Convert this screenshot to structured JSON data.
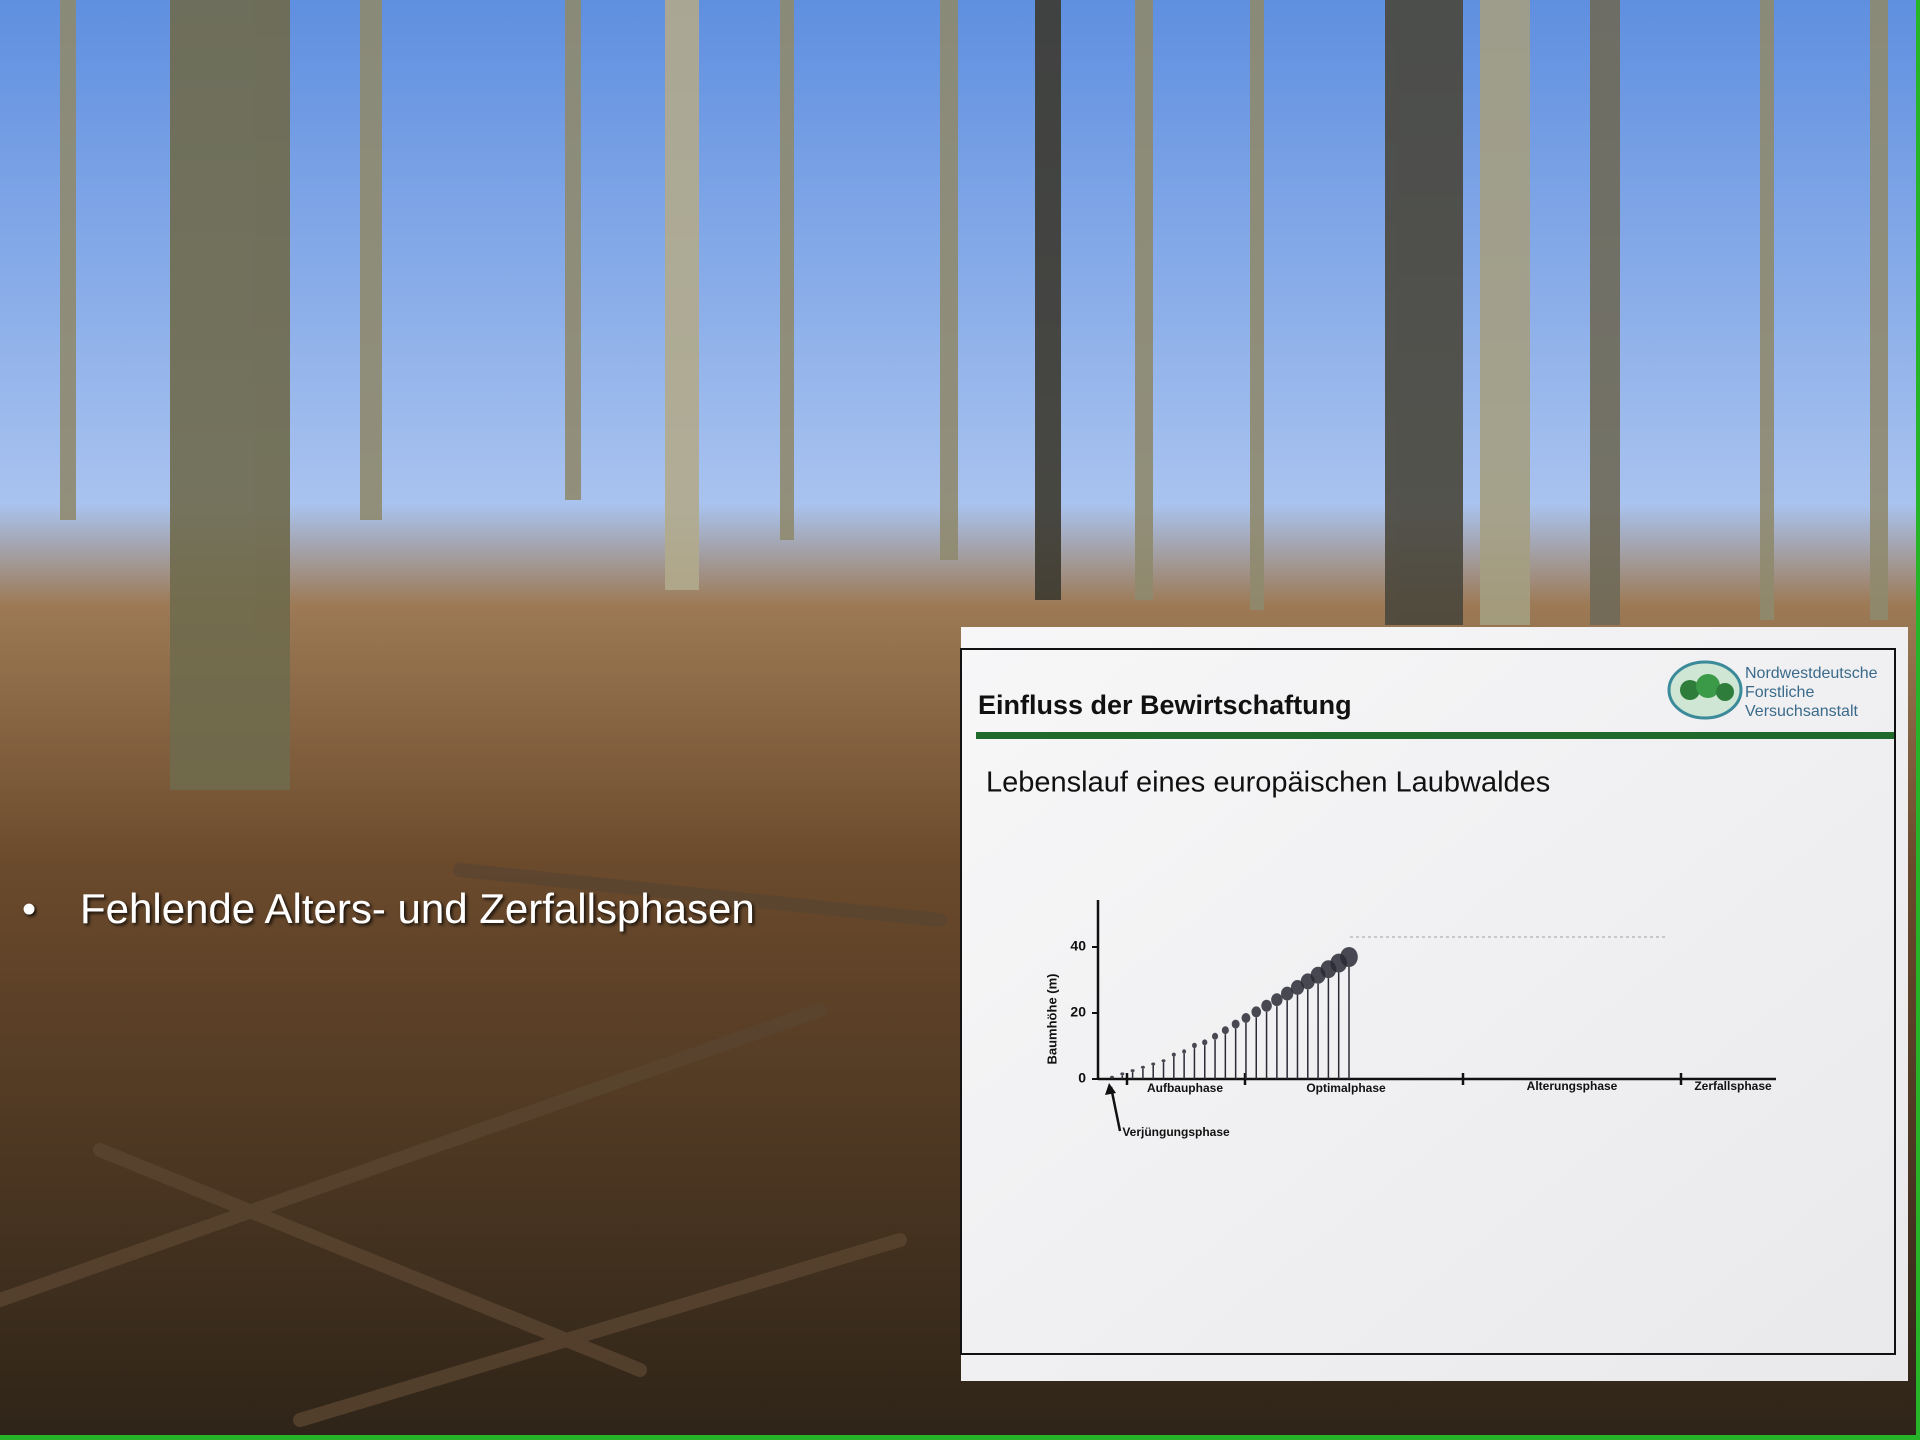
{
  "bullet": "Fehlende Alters- und Zerfallsphasen",
  "inset": {
    "title": "Einfluss der Bewirtschaftung",
    "logo": [
      "Nordwestdeutsche",
      "Forstliche",
      "Versuchsanstalt"
    ],
    "subtitle": "Lebenslauf eines europäischen Laubwaldes",
    "chart_data": {
      "type": "tree-growth",
      "y_label": "Baumhöhe (m)",
      "ylim": [
        0,
        54
      ],
      "yticks": [
        0,
        20,
        40
      ],
      "phases": [
        "Verjüngungsphase",
        "Aufbauphase",
        "Optimalphase",
        "Alterungsphase",
        "Zerfallsphase"
      ],
      "values": [
        1,
        2,
        3,
        4,
        5,
        6,
        8,
        9,
        11,
        12,
        14,
        16,
        18,
        20,
        22,
        24,
        26,
        28,
        30,
        32,
        34,
        36,
        38,
        40
      ],
      "color": "#2a2a35"
    }
  }
}
